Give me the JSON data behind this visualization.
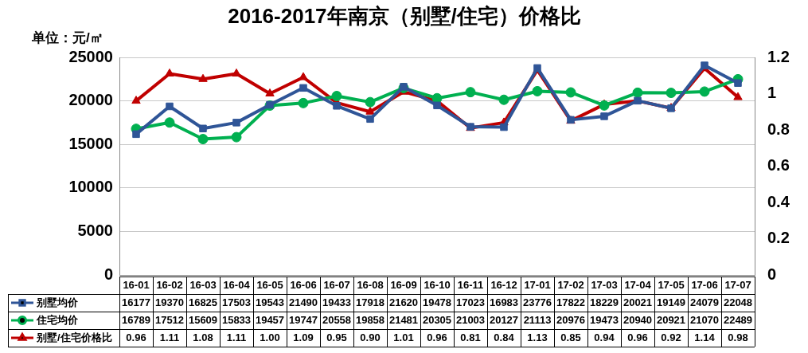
{
  "chart_data": {
    "type": "line",
    "title": "2016-2017年南京（别墅/住宅）价格比",
    "ylabel": "单位：元/㎡",
    "categories": [
      "16-01",
      "16-02",
      "16-03",
      "16-04",
      "16-05",
      "16-06",
      "16-07",
      "16-08",
      "16-09",
      "16-10",
      "16-11",
      "16-12",
      "17-01",
      "17-02",
      "17-03",
      "17-04",
      "17-05",
      "17-06",
      "17-07"
    ],
    "ylim": [
      0,
      25000
    ],
    "yticks": [
      0,
      5000,
      10000,
      15000,
      20000,
      25000
    ],
    "y2lim": [
      0,
      1.2
    ],
    "y2ticks": [
      0,
      0.2,
      0.4,
      0.6,
      0.8,
      1,
      1.2
    ],
    "grid": "y",
    "legend": "bottom",
    "series": [
      {
        "name": "别墅均价",
        "color": "#2f5597",
        "marker": "square",
        "values": [
          16177,
          19370,
          16825,
          17503,
          19543,
          21490,
          19433,
          17918,
          21620,
          19478,
          17023,
          16983,
          23776,
          17822,
          18229,
          20021,
          19149,
          24079,
          22048
        ],
        "value_labels": [
          "16177",
          "19370",
          "16825",
          "17503",
          "19543",
          "21490",
          "19433",
          "17918",
          "21620",
          "19478",
          "17023",
          "16983",
          "23776",
          "17822",
          "18229",
          "20021",
          "19149",
          "24079",
          "22048"
        ]
      },
      {
        "name": "住宅均价",
        "color": "#00b050",
        "marker": "circle",
        "values": [
          16789,
          17512,
          15609,
          15833,
          19457,
          19747,
          20558,
          19858,
          21481,
          20305,
          21003,
          20127,
          21113,
          20976,
          19473,
          20940,
          20921,
          21070,
          22489
        ],
        "value_labels": [
          "16789",
          "17512",
          "15609",
          "15833",
          "19457",
          "19747",
          "20558",
          "19858",
          "21481",
          "20305",
          "21003",
          "20127",
          "21113",
          "20976",
          "19473",
          "20940",
          "20921",
          "21070",
          "22489"
        ]
      },
      {
        "name": "别墅/住宅价格比",
        "color": "#c00000",
        "marker": "triangle",
        "axis": "y2",
        "values": [
          0.96,
          1.11,
          1.08,
          1.11,
          1.0,
          1.09,
          0.95,
          0.9,
          1.01,
          0.96,
          0.81,
          0.84,
          1.13,
          0.85,
          0.94,
          0.96,
          0.92,
          1.14,
          0.98
        ],
        "value_labels": [
          "0.96",
          "1.11",
          "1.08",
          "1.11",
          "1.00",
          "1.09",
          "0.95",
          "0.90",
          "1.01",
          "0.96",
          "0.81",
          "0.84",
          "1.13",
          "0.85",
          "0.94",
          "0.96",
          "0.92",
          "1.14",
          "0.98"
        ]
      }
    ]
  }
}
